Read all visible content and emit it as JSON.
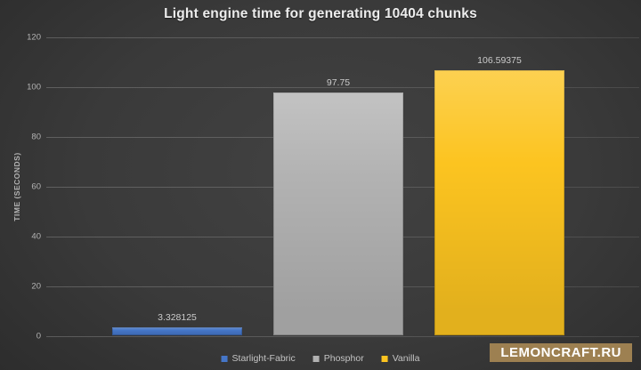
{
  "title": "Light engine time for generating 10404 chunks",
  "chart_data": {
    "type": "bar",
    "categories": [
      "Starlight-Fabric",
      "Phosphor",
      "Vanilla"
    ],
    "values": [
      3.328125,
      97.75,
      106.59375
    ],
    "value_labels": [
      "3.328125",
      "97.75",
      "106.59375"
    ],
    "colors": [
      "#4576c8",
      "#b2b2b2",
      "#fcc420"
    ],
    "title": "Light engine time for generating 10404 chunks",
    "xlabel": "",
    "ylabel": "TIME (SECONDS)",
    "ylim": [
      0,
      120
    ],
    "yticks": [
      0,
      20,
      40,
      60,
      80,
      100,
      120
    ],
    "grid": true,
    "legend_position": "bottom-center"
  },
  "watermark": {
    "text": "LEMONCRAFT.RU",
    "background": "#9d8051",
    "text_color": "#ffffff"
  },
  "theme": {
    "background_center": "#424242",
    "background_edge": "#262626",
    "tick_color": "#b4b4b4",
    "title_color": "#ededed",
    "label_color": "#cbcbcb",
    "legend_text_color": "#c4c4c4"
  }
}
